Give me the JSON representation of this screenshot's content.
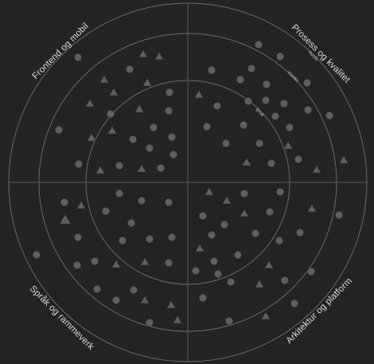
{
  "radar": {
    "rings": [
      {
        "name": "Bruk"
      },
      {
        "name": "Vurder"
      },
      {
        "name": "Avslå"
      }
    ],
    "quadrants": [
      {
        "name": "Frontend og mobil",
        "position": "top-left"
      },
      {
        "name": "Prosess og kvalitet",
        "position": "top-right"
      },
      {
        "name": "Språk og rammeverk",
        "position": "bottom-left"
      },
      {
        "name": "Arkitektur og platform",
        "position": "bottom-right"
      }
    ],
    "colors": {
      "background": "#232323",
      "blip": "#5e5e5e",
      "highlight": "#d9534f",
      "ring": "#6a6a6a",
      "text": "#dcdcdc"
    },
    "highlighted_blip": {
      "shape": "triangle",
      "quadrant": "Språk og rammeverk",
      "color": "#d9534f"
    },
    "blip_shapes": [
      "circle",
      "triangle"
    ]
  }
}
